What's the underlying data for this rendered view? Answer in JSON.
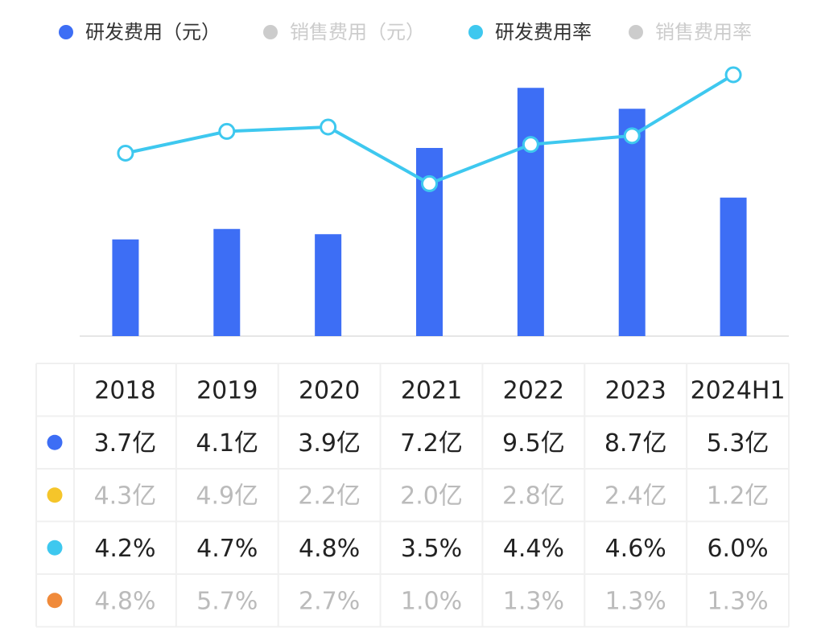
{
  "chart_data": {
    "type": "bar",
    "categories": [
      "2018",
      "2019",
      "2020",
      "2021",
      "2022",
      "2023",
      "2024H1"
    ],
    "ylim": [
      0,
      10
    ],
    "y2lim": [
      0,
      6.0
    ],
    "inactive_color": "#cccccc",
    "series": [
      {
        "name": "研发费用（元）",
        "type": "bar",
        "color": "#3d6ef5",
        "visible": true,
        "values": [
          3.7,
          4.1,
          3.9,
          7.2,
          9.5,
          8.7,
          5.3
        ],
        "value_labels": [
          "3.7亿",
          "4.1亿",
          "3.9亿",
          "7.2亿",
          "9.5亿",
          "8.7亿",
          "5.3亿"
        ]
      },
      {
        "name": "销售费用（元）",
        "type": "bar",
        "color": "#f5c52a",
        "visible": false,
        "values": [
          4.3,
          4.9,
          2.2,
          2.0,
          2.8,
          2.4,
          1.2
        ],
        "value_labels": [
          "4.3亿",
          "4.9亿",
          "2.2亿",
          "2.0亿",
          "2.8亿",
          "2.4亿",
          "1.2亿"
        ]
      },
      {
        "name": "研发费用率",
        "type": "line",
        "axis": "y2",
        "color": "#3ec8ef",
        "visible": true,
        "values": [
          4.2,
          4.7,
          4.8,
          3.5,
          4.4,
          4.6,
          6.0
        ],
        "value_labels": [
          "4.2%",
          "4.7%",
          "4.8%",
          "3.5%",
          "4.4%",
          "4.6%",
          "6.0%"
        ]
      },
      {
        "name": "销售费用率",
        "type": "line",
        "axis": "y2",
        "color": "#f08a3a",
        "visible": false,
        "values": [
          4.8,
          5.7,
          2.7,
          1.0,
          1.3,
          1.3,
          1.3
        ],
        "value_labels": [
          "4.8%",
          "5.7%",
          "2.7%",
          "1.0%",
          "1.3%",
          "1.3%",
          "1.3%"
        ]
      }
    ]
  }
}
